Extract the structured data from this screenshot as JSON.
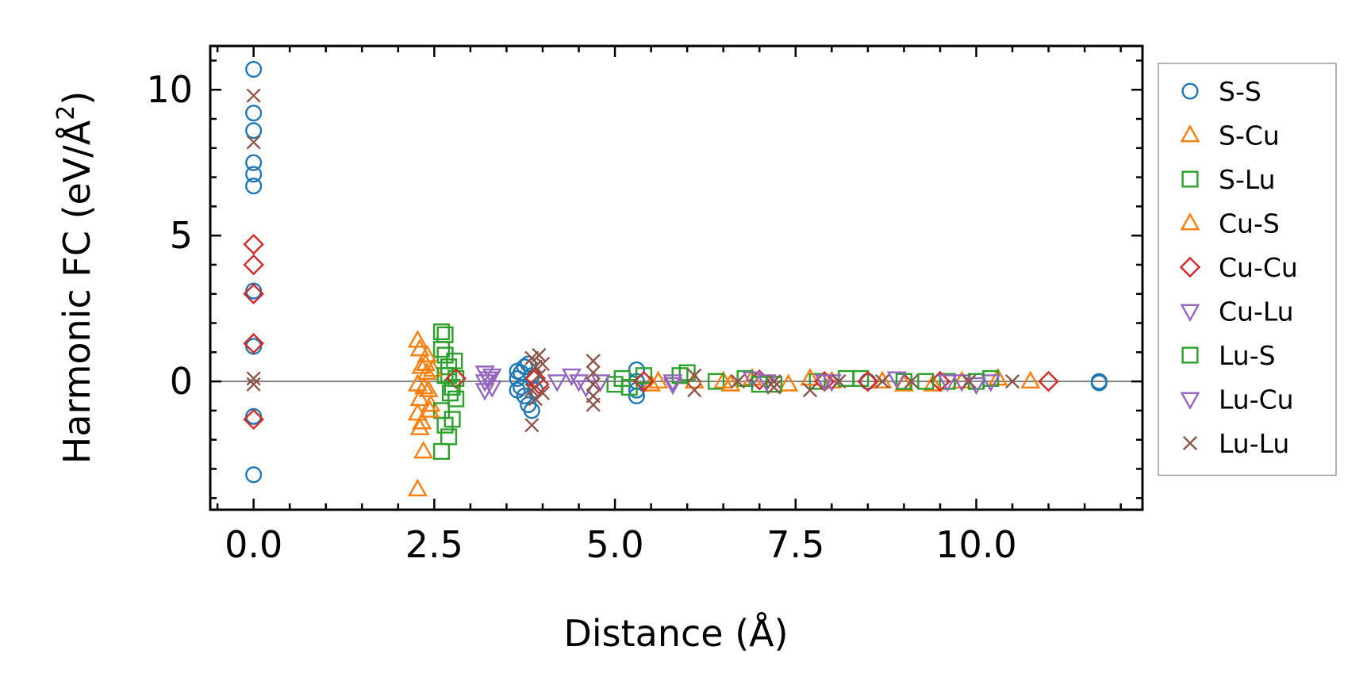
{
  "chart_data": {
    "type": "scatter",
    "title": "",
    "xlabel": "Distance (Å)",
    "ylabel_main": "Harmonic FC (eV/Å",
    "ylabel_sup": "2",
    "ylabel_close": ")",
    "xlim": [
      -0.6,
      12.3
    ],
    "ylim": [
      -4.4,
      11.5
    ],
    "xticks": [
      0.0,
      2.5,
      5.0,
      7.5,
      10.0
    ],
    "xtick_labels": [
      "0.0",
      "2.5",
      "5.0",
      "7.5",
      "10.0"
    ],
    "yticks": [
      0,
      5,
      10
    ],
    "ytick_labels": [
      "0",
      "5",
      "10"
    ],
    "zero_line": 0,
    "legend_position": "right",
    "series": [
      {
        "name": "S-S",
        "marker": "circle",
        "color": "#1f77b4",
        "points": [
          [
            0,
            10.7
          ],
          [
            0,
            9.2
          ],
          [
            0,
            8.6
          ],
          [
            0,
            7.5
          ],
          [
            0,
            7.1
          ],
          [
            0,
            6.7
          ],
          [
            0,
            3.1
          ],
          [
            0,
            1.2
          ],
          [
            0,
            -1.2
          ],
          [
            0,
            -3.2
          ],
          [
            3.65,
            0.35
          ],
          [
            3.65,
            0.1
          ],
          [
            3.65,
            -0.3
          ],
          [
            3.7,
            0.3
          ],
          [
            3.7,
            -0.2
          ],
          [
            3.75,
            0.5
          ],
          [
            3.75,
            -0.5
          ],
          [
            3.8,
            0.6
          ],
          [
            3.8,
            -0.8
          ],
          [
            3.85,
            -1.0
          ],
          [
            3.85,
            0.2
          ],
          [
            3.9,
            -0.3
          ],
          [
            5.3,
            0.4
          ],
          [
            5.3,
            0.0
          ],
          [
            5.3,
            -0.3
          ],
          [
            5.3,
            -0.5
          ],
          [
            8.5,
            0.0
          ],
          [
            11.7,
            0.0
          ],
          [
            11.7,
            -0.05
          ]
        ]
      },
      {
        "name": "S-Cu",
        "marker": "triangle-up",
        "color": "#ff7f0e",
        "points": [
          [
            2.27,
            1.4
          ],
          [
            2.3,
            1.1
          ],
          [
            2.27,
            -0.1
          ],
          [
            2.3,
            -0.6
          ],
          [
            2.27,
            -1.1
          ],
          [
            2.3,
            -1.6
          ],
          [
            2.27,
            -3.7
          ],
          [
            2.33,
            -1.4
          ],
          [
            2.35,
            -2.4
          ],
          [
            2.38,
            0.6
          ],
          [
            2.4,
            0.3
          ],
          [
            2.42,
            -0.3
          ],
          [
            2.45,
            -0.8
          ],
          [
            5.5,
            -0.1
          ],
          [
            6.1,
            0.0
          ],
          [
            6.5,
            0.0
          ],
          [
            6.9,
            0.1
          ],
          [
            7.4,
            -0.1
          ],
          [
            8.0,
            0.0
          ],
          [
            9.0,
            -0.1
          ],
          [
            9.8,
            0.0
          ],
          [
            10.3,
            0.1
          ],
          [
            10.75,
            0.0
          ]
        ]
      },
      {
        "name": "S-Lu",
        "marker": "square",
        "color": "#2ca02c",
        "points": [
          [
            2.6,
            1.7
          ],
          [
            2.65,
            1.6
          ],
          [
            2.6,
            1.1
          ],
          [
            2.65,
            0.9
          ],
          [
            2.7,
            0.5
          ],
          [
            2.6,
            -1.0
          ],
          [
            2.65,
            -1.5
          ],
          [
            2.7,
            -1.9
          ],
          [
            2.6,
            -2.4
          ],
          [
            2.75,
            -1.3
          ],
          [
            2.7,
            0.2
          ],
          [
            2.75,
            -0.2
          ],
          [
            2.8,
            0.1
          ],
          [
            2.8,
            -0.6
          ],
          [
            5.1,
            0.1
          ],
          [
            5.2,
            -0.2
          ],
          [
            5.4,
            0.2
          ],
          [
            6.0,
            0.3
          ],
          [
            6.4,
            0.0
          ],
          [
            6.8,
            0.1
          ],
          [
            7.2,
            -0.1
          ],
          [
            7.8,
            0.0
          ],
          [
            8.4,
            0.1
          ],
          [
            9.0,
            0.0
          ],
          [
            9.6,
            0.0
          ],
          [
            10.2,
            0.1
          ]
        ]
      },
      {
        "name": "Cu-S",
        "marker": "triangle-up",
        "color": "#ff7f0e",
        "points": [
          [
            2.32,
            0.5
          ],
          [
            2.36,
            -0.2
          ],
          [
            2.4,
            0.9
          ],
          [
            2.44,
            -1.0
          ],
          [
            2.48,
            0.4
          ],
          [
            5.6,
            0.0
          ],
          [
            6.6,
            -0.1
          ],
          [
            7.7,
            0.1
          ],
          [
            8.7,
            0.0
          ],
          [
            9.4,
            -0.1
          ]
        ]
      },
      {
        "name": "Cu-Cu",
        "marker": "diamond",
        "color": "#d62728",
        "points": [
          [
            0,
            4.7
          ],
          [
            0,
            4.0
          ],
          [
            0,
            3.0
          ],
          [
            0,
            1.3
          ],
          [
            0,
            -1.3
          ],
          [
            2.8,
            0.1
          ],
          [
            3.9,
            0.1
          ],
          [
            3.95,
            -0.1
          ],
          [
            5.4,
            0.0
          ],
          [
            7.0,
            0.05
          ],
          [
            7.9,
            0.0
          ],
          [
            8.5,
            0.0
          ],
          [
            9.5,
            0.0
          ],
          [
            11.0,
            0.0
          ]
        ]
      },
      {
        "name": "Cu-Lu",
        "marker": "triangle-down",
        "color": "#9467bd",
        "points": [
          [
            3.2,
            0.3
          ],
          [
            3.2,
            0.0
          ],
          [
            3.2,
            -0.3
          ],
          [
            3.3,
            0.2
          ],
          [
            3.3,
            -0.2
          ],
          [
            4.4,
            0.2
          ],
          [
            4.5,
            0.0
          ],
          [
            4.6,
            -0.2
          ],
          [
            5.8,
            0.0
          ],
          [
            6.9,
            0.1
          ],
          [
            7.9,
            0.0
          ],
          [
            8.9,
            0.1
          ],
          [
            9.8,
            0.0
          ],
          [
            10.2,
            0.0
          ]
        ]
      },
      {
        "name": "Lu-S",
        "marker": "square",
        "color": "#2ca02c",
        "points": [
          [
            2.65,
            0.2
          ],
          [
            2.72,
            -0.4
          ],
          [
            2.78,
            0.7
          ],
          [
            5.0,
            -0.1
          ],
          [
            5.9,
            0.2
          ],
          [
            7.0,
            -0.1
          ],
          [
            8.2,
            0.1
          ],
          [
            9.3,
            0.0
          ],
          [
            10.0,
            0.0
          ]
        ]
      },
      {
        "name": "Lu-Cu",
        "marker": "triangle-down",
        "color": "#9467bd",
        "points": [
          [
            3.25,
            0.1
          ],
          [
            4.2,
            0.0
          ],
          [
            4.8,
            0.0
          ],
          [
            5.8,
            -0.1
          ],
          [
            7.1,
            0.0
          ],
          [
            8.0,
            0.0
          ],
          [
            9.6,
            0.0
          ],
          [
            10.0,
            -0.1
          ]
        ]
      },
      {
        "name": "Lu-Lu",
        "marker": "x",
        "color": "#8c564b",
        "points": [
          [
            0,
            9.8
          ],
          [
            0,
            8.2
          ],
          [
            0,
            0.1
          ],
          [
            0,
            -0.1
          ],
          [
            3.85,
            0.8
          ],
          [
            3.9,
            0.5
          ],
          [
            3.95,
            0.2
          ],
          [
            3.85,
            -0.3
          ],
          [
            3.9,
            -0.6
          ],
          [
            3.85,
            -1.5
          ],
          [
            3.95,
            0.9
          ],
          [
            4.0,
            0.6
          ],
          [
            4.0,
            -0.4
          ],
          [
            4.7,
            0.7
          ],
          [
            4.7,
            0.3
          ],
          [
            4.7,
            -0.1
          ],
          [
            4.7,
            -0.5
          ],
          [
            4.7,
            -0.8
          ],
          [
            6.1,
            0.2
          ],
          [
            6.1,
            -0.3
          ],
          [
            6.7,
            0.0
          ],
          [
            7.2,
            0.0
          ],
          [
            7.2,
            -0.2
          ],
          [
            7.7,
            -0.3
          ],
          [
            8.1,
            0.0
          ],
          [
            8.7,
            0.0
          ],
          [
            9.1,
            0.0
          ],
          [
            9.9,
            0.0
          ],
          [
            10.5,
            0.0
          ]
        ]
      }
    ]
  }
}
